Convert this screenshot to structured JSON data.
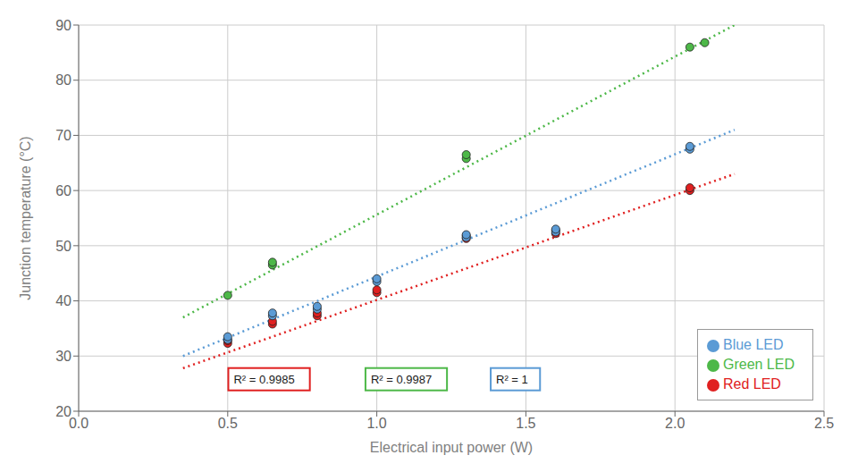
{
  "chart_data": {
    "type": "scatter",
    "xlabel": "Electrical input power (W)",
    "ylabel": "Junction temperature (°C)",
    "xlim": [
      0.0,
      2.5
    ],
    "ylim": [
      20,
      90
    ],
    "xticks": [
      {
        "value": 0.0,
        "label": "0.0"
      },
      0.5,
      {
        "value": 1.0,
        "label": "1.0"
      },
      1.5,
      {
        "value": 2.0,
        "label": "2.0"
      },
      2.5
    ],
    "yticks": [
      20,
      30,
      40,
      50,
      60,
      70,
      80,
      90
    ],
    "grid": true,
    "legend": "lower right",
    "series": [
      {
        "name": "Red LED",
        "color": "#e02020",
        "marker": "circle",
        "x": [
          0.5,
          0.5,
          0.65,
          0.65,
          0.8,
          0.8,
          1.0,
          1.0,
          1.3,
          1.3,
          1.6,
          1.6,
          2.05,
          2.05
        ],
        "values": [
          32.3,
          32.8,
          35.8,
          36.3,
          37.3,
          37.8,
          41.5,
          42.0,
          51.3,
          51.8,
          52.2,
          52.8,
          60.0,
          60.5
        ],
        "fit": {
          "line_style": "dotted",
          "x": [
            0.35,
            2.2
          ],
          "values": [
            27.8,
            63.0
          ]
        }
      },
      {
        "name": "Green LED",
        "color": "#4db848",
        "marker": "circle",
        "x": [
          0.5,
          0.65,
          0.65,
          1.3,
          1.3,
          2.05,
          2.1
        ],
        "values": [
          41.0,
          46.5,
          47.0,
          65.8,
          66.5,
          86.0,
          86.8
        ],
        "fit": {
          "line_style": "dotted",
          "x": [
            0.35,
            2.2
          ],
          "values": [
            37.0,
            90.0
          ]
        }
      },
      {
        "name": "Blue LED",
        "color": "#5b9bd5",
        "marker": "circle",
        "x": [
          0.5,
          0.5,
          0.65,
          0.65,
          0.8,
          0.8,
          1.0,
          1.0,
          1.3,
          1.3,
          1.6,
          1.6,
          2.05,
          2.05
        ],
        "values": [
          33.0,
          33.5,
          37.3,
          37.8,
          38.5,
          39.0,
          43.5,
          44.0,
          51.5,
          52.0,
          52.5,
          53.0,
          67.5,
          68.0
        ],
        "fit": {
          "line_style": "dotted",
          "x": [
            0.35,
            2.2
          ],
          "values": [
            30.0,
            71.0
          ]
        }
      }
    ],
    "annotations": [
      {
        "text": "R² = 0.9985",
        "x": 0.52,
        "y": 25.8,
        "color": "#e02020"
      },
      {
        "text": "R² = 0.9987",
        "x": 0.98,
        "y": 25.8,
        "color": "#4db848"
      },
      {
        "text": "R² = 1",
        "x": 1.4,
        "y": 25.8,
        "color": "#5b9bd5"
      }
    ]
  }
}
